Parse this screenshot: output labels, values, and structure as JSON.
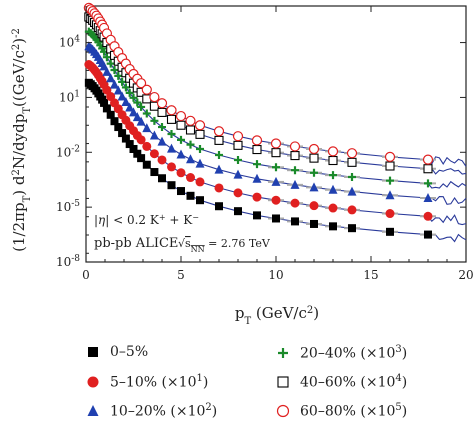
{
  "chart_data": {
    "type": "scatter",
    "xlabel": "p_T (GeV/c^2)",
    "ylabel": "(1/2πp_T) d^2N/dydp_T((GeV/c^2)^-2",
    "xlim": [
      0,
      20
    ],
    "ylim_log10": [
      -8,
      6
    ],
    "x_ticks": [
      "0",
      "5",
      "10",
      "15",
      "20"
    ],
    "y_ticks": [
      "10^-8",
      "10^-5",
      "10^-2",
      "10^1",
      "10^4"
    ],
    "annotations": {
      "line1": "|η| < 0.2 K^+ + K^-",
      "line2_left": "pb-pb ALICE",
      "line2_right": "√s_NN = 2.76 TeV"
    },
    "series": [
      {
        "name": "0–5%",
        "marker": "filled-square",
        "color": "#000000",
        "x": [
          0.15,
          0.25,
          0.35,
          0.45,
          0.55,
          0.65,
          0.75,
          0.85,
          0.95,
          1.1,
          1.3,
          1.5,
          1.7,
          1.9,
          2.1,
          2.3,
          2.5,
          2.7,
          2.9,
          3.2,
          3.6,
          4.0,
          4.5,
          5.0,
          5.5,
          6.0,
          7.0,
          8.0,
          9.0,
          10.0,
          11.0,
          12.0,
          13.0,
          14.0,
          16.0,
          18.0
        ],
        "y": [
          1.8,
          1.72,
          1.62,
          1.5,
          1.37,
          1.22,
          1.05,
          0.88,
          0.7,
          0.4,
          0.05,
          -0.3,
          -0.62,
          -0.95,
          -1.25,
          -1.55,
          -1.82,
          -2.08,
          -2.32,
          -2.68,
          -3.08,
          -3.42,
          -3.8,
          -4.12,
          -4.38,
          -4.62,
          -4.95,
          -5.22,
          -5.45,
          -5.62,
          -5.78,
          -5.92,
          -6.05,
          -6.15,
          -6.35,
          -6.5
        ]
      },
      {
        "name": "5–10% (×10^1)",
        "marker": "filled-circle",
        "color": "#e02020",
        "x": [
          0.15,
          0.25,
          0.35,
          0.45,
          0.55,
          0.65,
          0.75,
          0.85,
          0.95,
          1.1,
          1.3,
          1.5,
          1.7,
          1.9,
          2.1,
          2.3,
          2.5,
          2.7,
          2.9,
          3.2,
          3.6,
          4.0,
          4.5,
          5.0,
          5.5,
          6.0,
          7.0,
          8.0,
          9.0,
          10.0,
          11.0,
          12.0,
          13.0,
          14.0,
          16.0,
          18.0
        ],
        "y": [
          2.8,
          2.72,
          2.62,
          2.5,
          2.37,
          2.22,
          2.05,
          1.88,
          1.7,
          1.4,
          1.05,
          0.7,
          0.38,
          0.05,
          -0.25,
          -0.55,
          -0.82,
          -1.08,
          -1.32,
          -1.68,
          -2.08,
          -2.42,
          -2.8,
          -3.12,
          -3.38,
          -3.62,
          -3.95,
          -4.22,
          -4.45,
          -4.62,
          -4.78,
          -4.92,
          -5.05,
          -5.15,
          -5.35,
          -5.5
        ]
      },
      {
        "name": "10–20% (×10^2)",
        "marker": "filled-triangle",
        "color": "#2040b0",
        "x": [
          0.15,
          0.25,
          0.35,
          0.45,
          0.55,
          0.65,
          0.75,
          0.85,
          0.95,
          1.1,
          1.3,
          1.5,
          1.7,
          1.9,
          2.1,
          2.3,
          2.5,
          2.7,
          2.9,
          3.2,
          3.6,
          4.0,
          4.5,
          5.0,
          5.5,
          6.0,
          7.0,
          8.0,
          9.0,
          10.0,
          11.0,
          12.0,
          13.0,
          14.0,
          16.0,
          18.0
        ],
        "y": [
          3.8,
          3.72,
          3.62,
          3.5,
          3.37,
          3.22,
          3.05,
          2.88,
          2.7,
          2.4,
          2.05,
          1.7,
          1.38,
          1.05,
          0.75,
          0.45,
          0.18,
          -0.08,
          -0.32,
          -0.68,
          -1.08,
          -1.42,
          -1.8,
          -2.12,
          -2.38,
          -2.62,
          -2.95,
          -3.22,
          -3.45,
          -3.62,
          -3.78,
          -3.92,
          -4.05,
          -4.15,
          -4.35,
          -4.5
        ]
      },
      {
        "name": "20–40% (×10^3)",
        "marker": "plus",
        "color": "#1a8a2a",
        "x": [
          0.15,
          0.25,
          0.35,
          0.45,
          0.55,
          0.65,
          0.75,
          0.85,
          0.95,
          1.1,
          1.3,
          1.5,
          1.7,
          1.9,
          2.1,
          2.3,
          2.5,
          2.7,
          2.9,
          3.2,
          3.6,
          4.0,
          4.5,
          5.0,
          5.5,
          6.0,
          7.0,
          8.0,
          9.0,
          10.0,
          11.0,
          12.0,
          13.0,
          14.0,
          16.0,
          18.0
        ],
        "y": [
          4.6,
          4.52,
          4.42,
          4.3,
          4.17,
          4.02,
          3.85,
          3.68,
          3.5,
          3.2,
          2.85,
          2.5,
          2.18,
          1.85,
          1.55,
          1.25,
          0.98,
          0.72,
          0.48,
          0.12,
          -0.28,
          -0.62,
          -1.0,
          -1.32,
          -1.58,
          -1.82,
          -2.15,
          -2.42,
          -2.65,
          -2.82,
          -2.98,
          -3.12,
          -3.25,
          -3.35,
          -3.55,
          -3.7
        ]
      },
      {
        "name": "40–60% (×10^4)",
        "marker": "open-square",
        "color": "#000000",
        "x": [
          0.15,
          0.25,
          0.35,
          0.45,
          0.55,
          0.65,
          0.75,
          0.85,
          0.95,
          1.1,
          1.3,
          1.5,
          1.7,
          1.9,
          2.1,
          2.3,
          2.5,
          2.7,
          2.9,
          3.2,
          3.6,
          4.0,
          4.5,
          5.0,
          5.5,
          6.0,
          7.0,
          8.0,
          9.0,
          10.0,
          11.0,
          12.0,
          13.0,
          14.0,
          16.0,
          18.0
        ],
        "y": [
          5.4,
          5.32,
          5.22,
          5.1,
          4.97,
          4.82,
          4.65,
          4.48,
          4.3,
          4.0,
          3.65,
          3.3,
          2.98,
          2.65,
          2.35,
          2.05,
          1.78,
          1.52,
          1.28,
          0.92,
          0.52,
          0.18,
          -0.2,
          -0.52,
          -0.78,
          -1.02,
          -1.35,
          -1.62,
          -1.85,
          -2.02,
          -2.18,
          -2.32,
          -2.45,
          -2.55,
          -2.75,
          -2.9
        ]
      },
      {
        "name": "60–80% (×10^5)",
        "marker": "open-circle",
        "color": "#e02020",
        "x": [
          0.15,
          0.25,
          0.35,
          0.45,
          0.55,
          0.65,
          0.75,
          0.85,
          0.95,
          1.1,
          1.3,
          1.5,
          1.7,
          1.9,
          2.1,
          2.3,
          2.5,
          2.7,
          2.9,
          3.2,
          3.6,
          4.0,
          4.5,
          5.0,
          5.5,
          6.0,
          7.0,
          8.0,
          9.0,
          10.0,
          11.0,
          12.0,
          13.0,
          14.0,
          16.0,
          18.0
        ],
        "y": [
          5.9,
          5.82,
          5.72,
          5.6,
          5.47,
          5.32,
          5.15,
          4.98,
          4.8,
          4.5,
          4.15,
          3.8,
          3.48,
          3.15,
          2.85,
          2.55,
          2.28,
          2.02,
          1.78,
          1.42,
          1.02,
          0.68,
          0.3,
          -0.02,
          -0.28,
          -0.52,
          -0.85,
          -1.12,
          -1.35,
          -1.52,
          -1.68,
          -1.82,
          -1.95,
          -2.05,
          -2.25,
          -2.4
        ]
      }
    ],
    "fit_color": "#2a3a9a",
    "legend_placement": "bottom"
  }
}
